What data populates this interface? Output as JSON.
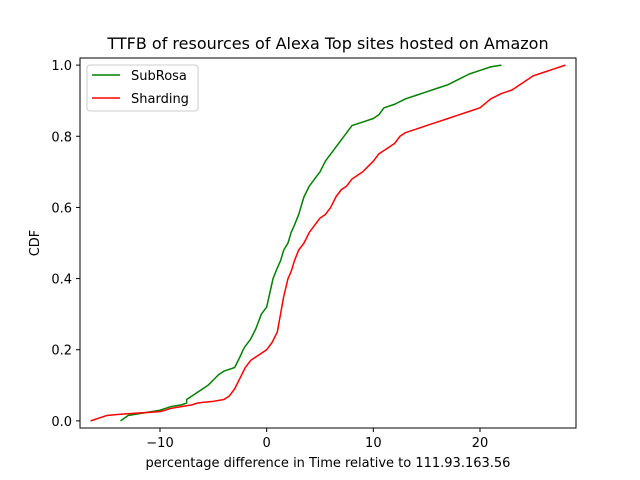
{
  "chart_data": {
    "type": "line",
    "title": "TTFB of resources of Alexa Top sites hosted on Amazon",
    "xlabel": "percentage difference in Time relative to 111.93.163.56",
    "ylabel": "CDF",
    "xlim": [
      -17.5,
      29
    ],
    "ylim": [
      -0.02,
      1.02
    ],
    "xticks": [
      -10,
      0,
      10,
      20
    ],
    "yticks": [
      0.0,
      0.2,
      0.4,
      0.6,
      0.8,
      1.0
    ],
    "xtick_labels": [
      "−10",
      "0",
      "10",
      "20"
    ],
    "ytick_labels": [
      "0.0",
      "0.2",
      "0.4",
      "0.6",
      "0.8",
      "1.0"
    ],
    "grid": false,
    "legend_position": "top-left",
    "series": [
      {
        "name": "SubRosa",
        "color": "#008000",
        "x": [
          -13.7,
          -13.0,
          -12.0,
          -11.0,
          -10.0,
          -9.0,
          -8.0,
          -7.5,
          -7.5,
          -7.0,
          -6.5,
          -6.0,
          -5.5,
          -5.0,
          -4.5,
          -4.0,
          -3.5,
          -3.0,
          -2.5,
          -2.2,
          -2.0,
          -1.5,
          -1.0,
          -0.5,
          0.0,
          0.3,
          0.6,
          1.0,
          1.3,
          1.6,
          2.0,
          2.3,
          2.6,
          3.0,
          3.5,
          4.0,
          4.5,
          5.0,
          5.5,
          6.0,
          6.5,
          7.0,
          7.5,
          8.0,
          9.0,
          10.0,
          10.5,
          11.0,
          12.0,
          13.0,
          14.0,
          15.0,
          16.0,
          17.0,
          18.0,
          19.0,
          20.0,
          21.0,
          22.0
        ],
        "y": [
          0.0,
          0.015,
          0.02,
          0.025,
          0.03,
          0.04,
          0.045,
          0.05,
          0.06,
          0.07,
          0.08,
          0.09,
          0.1,
          0.115,
          0.13,
          0.14,
          0.145,
          0.15,
          0.18,
          0.2,
          0.21,
          0.23,
          0.26,
          0.3,
          0.32,
          0.36,
          0.4,
          0.43,
          0.45,
          0.48,
          0.5,
          0.53,
          0.55,
          0.58,
          0.63,
          0.66,
          0.68,
          0.7,
          0.73,
          0.75,
          0.77,
          0.79,
          0.81,
          0.83,
          0.84,
          0.85,
          0.86,
          0.88,
          0.89,
          0.905,
          0.915,
          0.925,
          0.935,
          0.945,
          0.96,
          0.975,
          0.985,
          0.995,
          1.0
        ]
      },
      {
        "name": "Sharding",
        "color": "#ff0000",
        "x": [
          -16.5,
          -15.5,
          -15.0,
          -14.0,
          -13.0,
          -12.0,
          -11.0,
          -10.0,
          -9.5,
          -9.0,
          -8.0,
          -7.0,
          -6.5,
          -6.0,
          -5.0,
          -4.0,
          -3.5,
          -3.0,
          -2.5,
          -2.0,
          -1.5,
          -1.0,
          0.0,
          0.5,
          1.0,
          1.3,
          1.6,
          2.0,
          2.3,
          2.6,
          3.0,
          3.5,
          4.0,
          4.5,
          5.0,
          5.5,
          6.0,
          6.5,
          7.0,
          7.5,
          8.0,
          9.0,
          10.0,
          10.5,
          11.0,
          11.5,
          12.0,
          12.5,
          13.0,
          14.0,
          15.0,
          16.0,
          17.0,
          18.0,
          19.0,
          20.0,
          21.0,
          22.0,
          23.0,
          24.0,
          25.0,
          26.0,
          27.0,
          28.0
        ],
        "y": [
          0.0,
          0.01,
          0.015,
          0.018,
          0.02,
          0.022,
          0.024,
          0.026,
          0.03,
          0.035,
          0.04,
          0.045,
          0.05,
          0.052,
          0.055,
          0.06,
          0.07,
          0.09,
          0.12,
          0.15,
          0.17,
          0.18,
          0.2,
          0.22,
          0.25,
          0.3,
          0.35,
          0.4,
          0.42,
          0.45,
          0.48,
          0.5,
          0.53,
          0.55,
          0.57,
          0.58,
          0.6,
          0.63,
          0.65,
          0.66,
          0.68,
          0.7,
          0.73,
          0.75,
          0.76,
          0.77,
          0.78,
          0.8,
          0.81,
          0.82,
          0.83,
          0.84,
          0.85,
          0.86,
          0.87,
          0.88,
          0.905,
          0.92,
          0.93,
          0.95,
          0.97,
          0.98,
          0.99,
          1.0
        ]
      }
    ]
  }
}
